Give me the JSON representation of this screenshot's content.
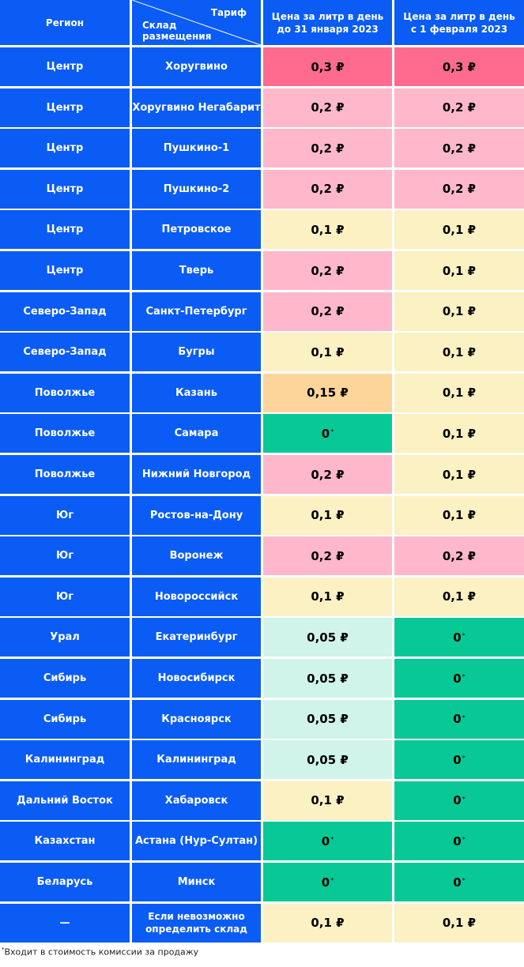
{
  "header": {
    "region": "Регион",
    "tariff": "Тариф",
    "warehouse": "Склад размещения",
    "price_before": "Цена за литр в день до 31 января 2023",
    "price_after": "Цена за литр в день с 1 февраля 2023"
  },
  "colors": {
    "blue": "#0a5cf5",
    "hot": "#ff6b8e",
    "pink": "#ffb8cb",
    "yellow": "#fcf1c3",
    "orange": "#fdd59b",
    "green": "#08c996",
    "mint": "#d0f4ea"
  },
  "rows": [
    {
      "region": "Центр",
      "warehouse": "Хоругвино",
      "before": "0,3 ₽",
      "after": "0,3 ₽",
      "bc": "hot",
      "ac": "hot"
    },
    {
      "region": "Центр",
      "warehouse": "Хоругвино Негабарит",
      "before": "0,2 ₽",
      "after": "0,2 ₽",
      "bc": "pink",
      "ac": "pink"
    },
    {
      "region": "Центр",
      "warehouse": "Пушкино-1",
      "before": "0,2 ₽",
      "after": "0,2 ₽",
      "bc": "pink",
      "ac": "pink"
    },
    {
      "region": "Центр",
      "warehouse": "Пушкино-2",
      "before": "0,2 ₽",
      "after": "0,2 ₽",
      "bc": "pink",
      "ac": "pink"
    },
    {
      "region": "Центр",
      "warehouse": "Петровское",
      "before": "0,1 ₽",
      "after": "0,1 ₽",
      "bc": "yellow",
      "ac": "yellow"
    },
    {
      "region": "Центр",
      "warehouse": "Тверь",
      "before": "0,2 ₽",
      "after": "0,1 ₽",
      "bc": "pink",
      "ac": "yellow"
    },
    {
      "region": "Северо-Запад",
      "warehouse": "Санкт-Петербург",
      "before": "0,2 ₽",
      "after": "0,1 ₽",
      "bc": "pink",
      "ac": "yellow"
    },
    {
      "region": "Северо-Запад",
      "warehouse": "Бугры",
      "before": "0,1 ₽",
      "after": "0,1 ₽",
      "bc": "yellow",
      "ac": "yellow"
    },
    {
      "region": "Поволжье",
      "warehouse": "Казань",
      "before": "0,15 ₽",
      "after": "0,1 ₽",
      "bc": "orange",
      "ac": "yellow"
    },
    {
      "region": "Поволжье",
      "warehouse": "Самара",
      "before": "0",
      "after": "0,1 ₽",
      "bc": "green",
      "ac": "yellow"
    },
    {
      "region": "Поволжье",
      "warehouse": "Нижний Новгород",
      "before": "0,2 ₽",
      "after": "0,1 ₽",
      "bc": "pink",
      "ac": "yellow"
    },
    {
      "region": "Юг",
      "warehouse": "Ростов-на-Дону",
      "before": "0,1 ₽",
      "after": "0,1 ₽",
      "bc": "yellow",
      "ac": "yellow"
    },
    {
      "region": "Юг",
      "warehouse": "Воронеж",
      "before": "0,2 ₽",
      "after": "0,2 ₽",
      "bc": "pink",
      "ac": "pink"
    },
    {
      "region": "Юг",
      "warehouse": "Новороссийск",
      "before": "0,1 ₽",
      "after": "0,1 ₽",
      "bc": "yellow",
      "ac": "yellow"
    },
    {
      "region": "Урал",
      "warehouse": "Екатеринбург",
      "before": "0,05 ₽",
      "after": "0",
      "bc": "mint",
      "ac": "green"
    },
    {
      "region": "Сибирь",
      "warehouse": "Новосибирск",
      "before": "0,05 ₽",
      "after": "0",
      "bc": "mint",
      "ac": "green"
    },
    {
      "region": "Сибирь",
      "warehouse": "Красноярск",
      "before": "0,05 ₽",
      "after": "0",
      "bc": "mint",
      "ac": "green"
    },
    {
      "region": "Калининград",
      "warehouse": "Калининград",
      "before": "0,05 ₽",
      "after": "0",
      "bc": "mint",
      "ac": "green"
    },
    {
      "region": "Дальний Восток",
      "warehouse": "Хабаровск",
      "before": "0,1 ₽",
      "after": "0",
      "bc": "yellow",
      "ac": "green"
    },
    {
      "region": "Казахстан",
      "warehouse": "Астана (Нур-Султан)",
      "before": "0",
      "after": "0",
      "bc": "green",
      "ac": "green"
    },
    {
      "region": "Беларусь",
      "warehouse": "Минск",
      "before": "0",
      "after": "0",
      "bc": "green",
      "ac": "green"
    },
    {
      "region": "—",
      "warehouse": "Если невозможно определить склад",
      "before": "0,1 ₽",
      "after": "0,1 ₽",
      "bc": "yellow",
      "ac": "yellow"
    }
  ],
  "footnote": {
    "marker": "*",
    "text": "Входит в стоимость комиссии за продажу"
  }
}
